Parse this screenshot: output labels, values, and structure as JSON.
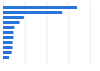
{
  "chart_data": {
    "type": "bar",
    "orientation": "horizontal",
    "categories": [
      null,
      null,
      null,
      null,
      null,
      null,
      null,
      null,
      null,
      null,
      null
    ],
    "values": [
      85,
      68,
      24,
      19,
      13,
      12,
      12,
      11,
      11,
      10,
      7
    ],
    "color": "#2876dd",
    "xlim": [
      0,
      100
    ],
    "xticks": [
      0,
      25,
      50,
      75,
      100
    ],
    "grid": true,
    "tick_labels": false
  }
}
